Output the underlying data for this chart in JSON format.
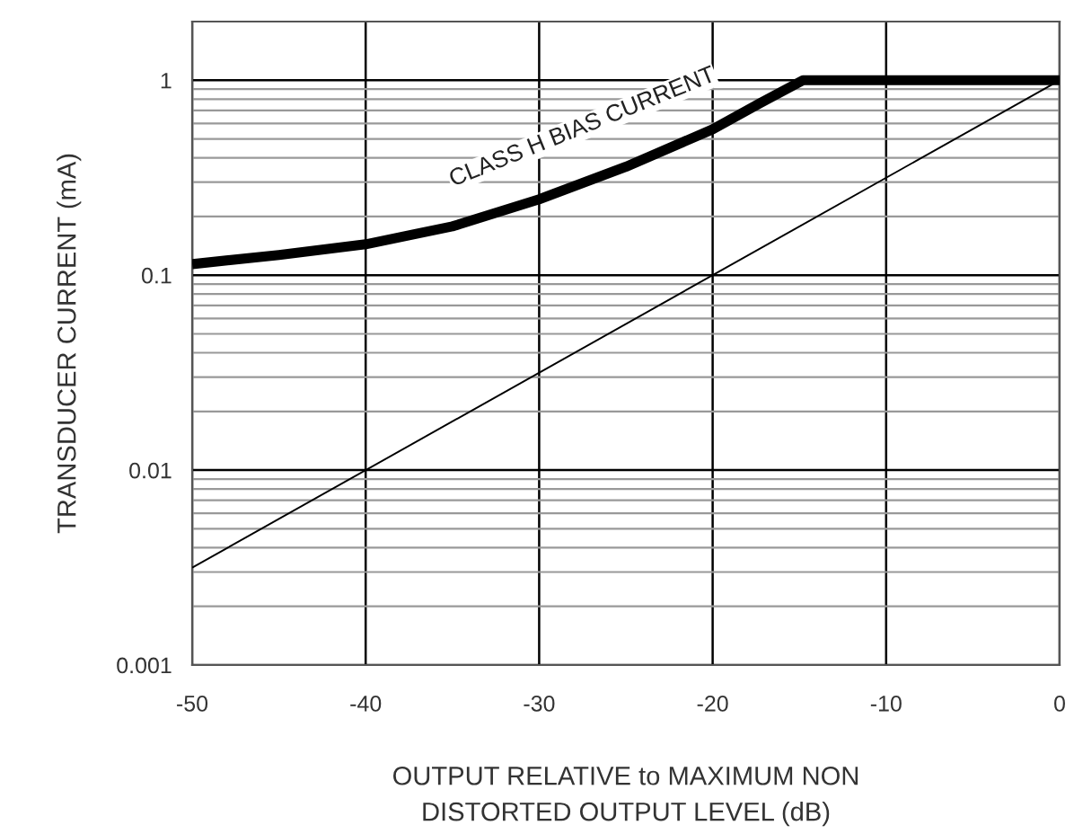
{
  "chart_data": {
    "type": "line",
    "xlabel": "OUTPUT RELATIVE to MAXIMUM NON\nDISTORTED OUTPUT LEVEL (dB)",
    "ylabel": "TRANSDUCER CURRENT (mA)",
    "log": "y",
    "grid": true,
    "xlim": [
      -50,
      0
    ],
    "xticks": [
      -50,
      -40,
      -30,
      -20,
      -10,
      0
    ],
    "ylim": [
      0.001,
      2
    ],
    "yticks": [
      0.001,
      0.01,
      0.1,
      1
    ],
    "series": [
      {
        "color": "#000000",
        "x": [
          -50,
          -45,
          -40,
          -35,
          -30,
          -25,
          -20,
          -17.3,
          -14.8,
          -10,
          -5,
          0
        ],
        "values": [
          0.114,
          0.127,
          0.144,
          0.178,
          0.245,
          0.36,
          0.56,
          0.76,
          1.0,
          1.0,
          1.0,
          1.0
        ]
      },
      {
        "color": "#000000",
        "x": [
          -50,
          0
        ],
        "values": [
          0.00316,
          1
        ]
      }
    ],
    "annotations": [
      "CLASS H BIAS CURRENT"
    ]
  }
}
